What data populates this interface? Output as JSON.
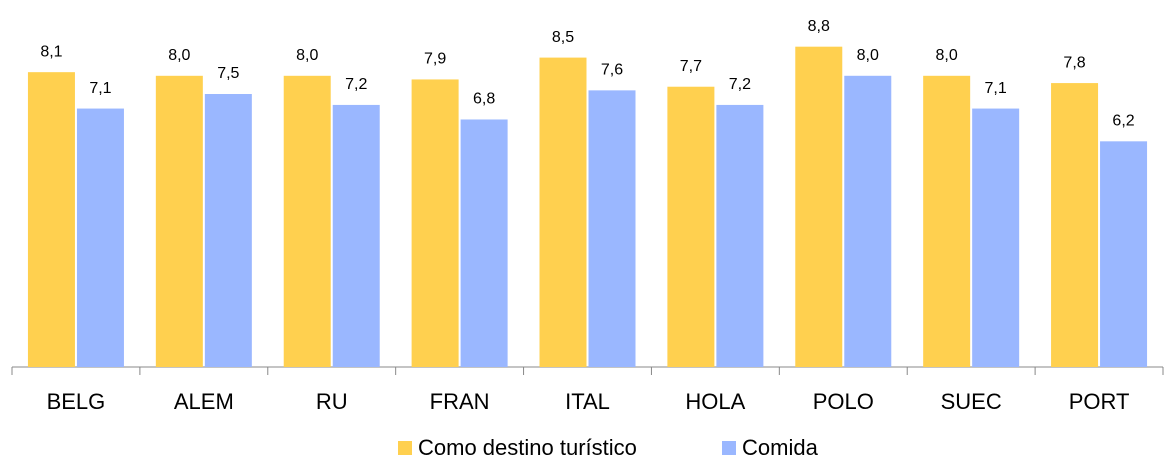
{
  "chart_data": {
    "type": "bar",
    "categories": [
      "BELG",
      "ALEM",
      "RU",
      "FRAN",
      "ITAL",
      "HOLA",
      "POLO",
      "SUEC",
      "PORT"
    ],
    "series": [
      {
        "name": "Como destino turístico",
        "color": "#ffd04f",
        "values": [
          8.1,
          8.0,
          8.0,
          7.9,
          8.5,
          7.7,
          8.8,
          8.0,
          7.8
        ],
        "value_labels": [
          "8,1",
          "8,0",
          "8,0",
          "7,9",
          "8,5",
          "7,7",
          "8,8",
          "8,0",
          "7,8"
        ]
      },
      {
        "name": "Comida",
        "color": "#9ab7ff",
        "values": [
          7.1,
          7.5,
          7.2,
          6.8,
          7.6,
          7.2,
          8.0,
          7.1,
          6.2
        ],
        "value_labels": [
          "7,1",
          "7,5",
          "7,2",
          "6,8",
          "7,6",
          "7,2",
          "8,0",
          "7,1",
          "6,2"
        ]
      }
    ],
    "ylim": [
      0,
      10
    ],
    "legend": "bottom"
  }
}
